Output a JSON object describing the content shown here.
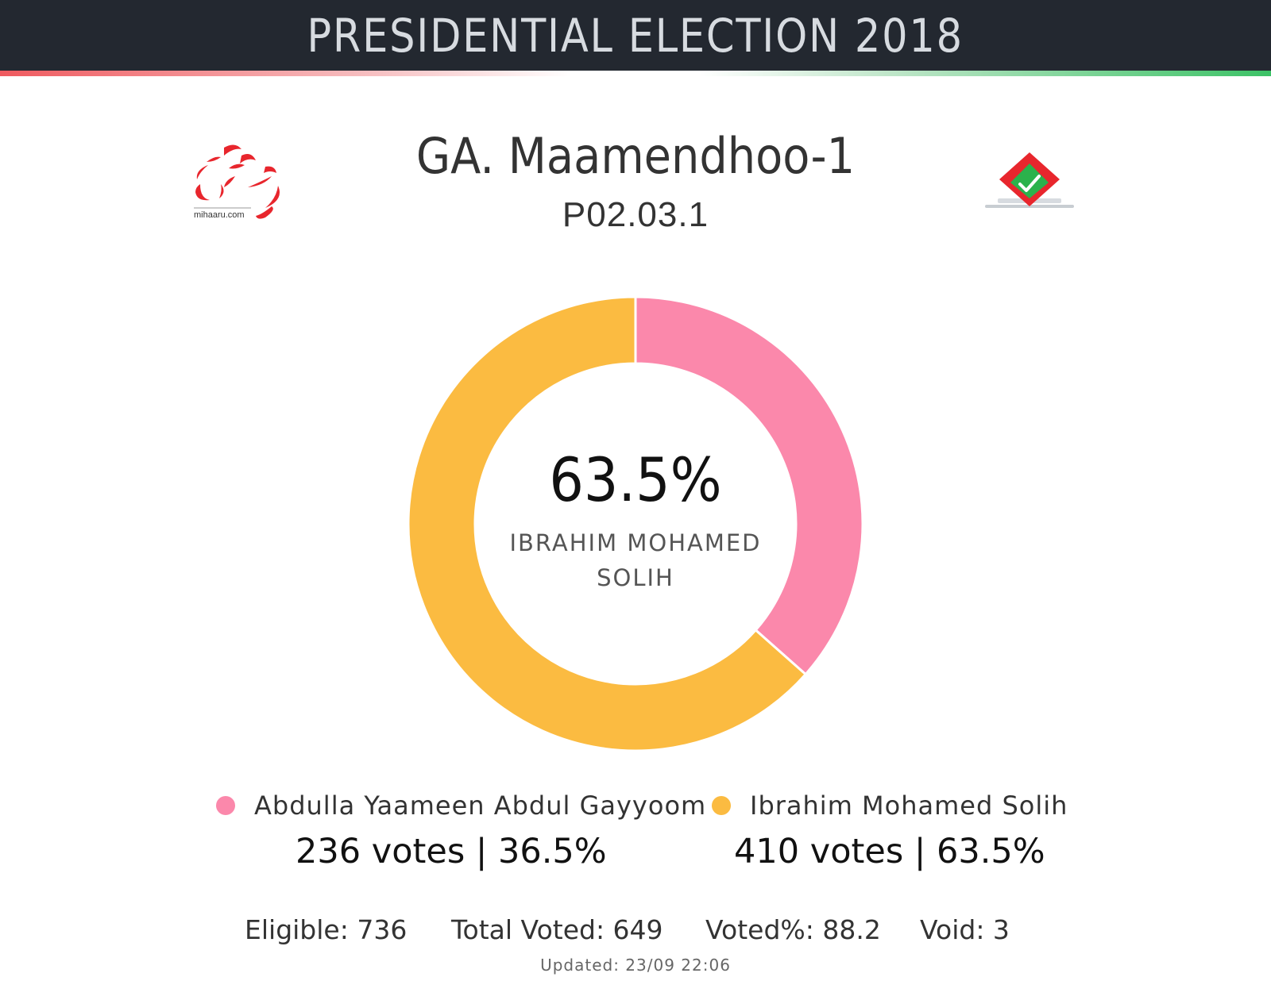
{
  "header": {
    "title": "PRESIDENTIAL ELECTION 2018"
  },
  "logos": {
    "left_text": "mihaaru.com",
    "left_icon": "mihaaru-logo-icon",
    "right_icon": "ballot-box-icon"
  },
  "constituency": {
    "name": "GA. Maamendhoo-1",
    "code": "P02.03.1"
  },
  "center": {
    "percent": "63.5%",
    "name": "IBRAHIM MOHAMED SOLIH"
  },
  "colors": {
    "pink": "#FB88AB",
    "yellow": "#FBBB41",
    "header_bg": "#232830"
  },
  "candidates": [
    {
      "name": "Abdulla Yaameen Abdul Gayyoom",
      "votes_text": "236 votes | 36.5%",
      "color": "#FB88AB"
    },
    {
      "name": "Ibrahim Mohamed Solih",
      "votes_text": "410 votes | 63.5%",
      "color": "#FBBB41"
    }
  ],
  "stats": {
    "eligible": "Eligible: 736",
    "total_voted": "Total Voted: 649",
    "voted_pct": "Voted%: 88.2",
    "void": "Void: 3"
  },
  "updated": "Updated: 23/09 22:06",
  "chart_data": {
    "type": "pie",
    "donut": true,
    "categories": [
      "Abdulla Yaameen Abdul Gayyoom",
      "Ibrahim Mohamed Solih"
    ],
    "values": [
      236,
      410
    ],
    "percentages": [
      36.5,
      63.5
    ],
    "colors": [
      "#FB88AB",
      "#FBBB41"
    ]
  }
}
